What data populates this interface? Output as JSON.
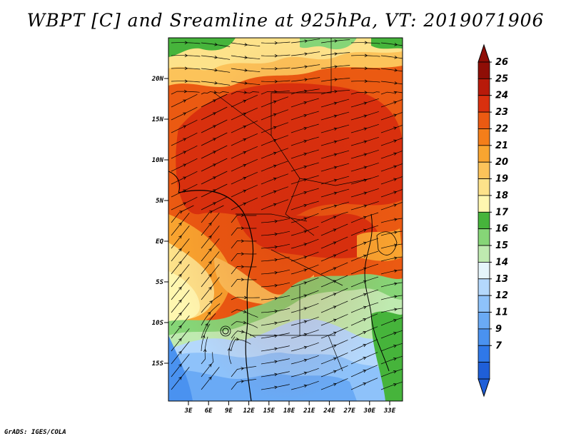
{
  "title": "WBPT [C] and Sreamline at 925hPa, VT: 2019071906",
  "credit": "GrADS: IGES/COLA",
  "map": {
    "variable": "WBPT",
    "units": "C",
    "level": "925hPa",
    "valid_time": "2019071906",
    "lat_ticks": [
      "20N",
      "15N",
      "10N",
      "5N",
      "EQ",
      "5S",
      "10S",
      "15S"
    ],
    "lon_ticks": [
      "3E",
      "6E",
      "9E",
      "12E",
      "15E",
      "18E",
      "21E",
      "24E",
      "27E",
      "30E",
      "33E"
    ]
  },
  "colorbar": {
    "labels": [
      "7",
      "9",
      "11",
      "12",
      "13",
      "14",
      "15",
      "16",
      "17",
      "18",
      "19",
      "20",
      "21",
      "22",
      "23",
      "24",
      "25",
      "26"
    ],
    "colors": [
      "#1f5fd8",
      "#2f78e8",
      "#4a92f0",
      "#6aaaf5",
      "#8ec2fa",
      "#b4d8fc",
      "#e6f5fb",
      "#bfeab0",
      "#86d577",
      "#46b43b",
      "#fff7b0",
      "#fde28a",
      "#fcc35a",
      "#f9a530",
      "#f47e1a",
      "#eb5a12",
      "#d9300e",
      "#b81a0a",
      "#8f0e06"
    ],
    "arrow_top_color": "#8f0e06",
    "arrow_bottom_color": "#1f5fd8"
  }
}
